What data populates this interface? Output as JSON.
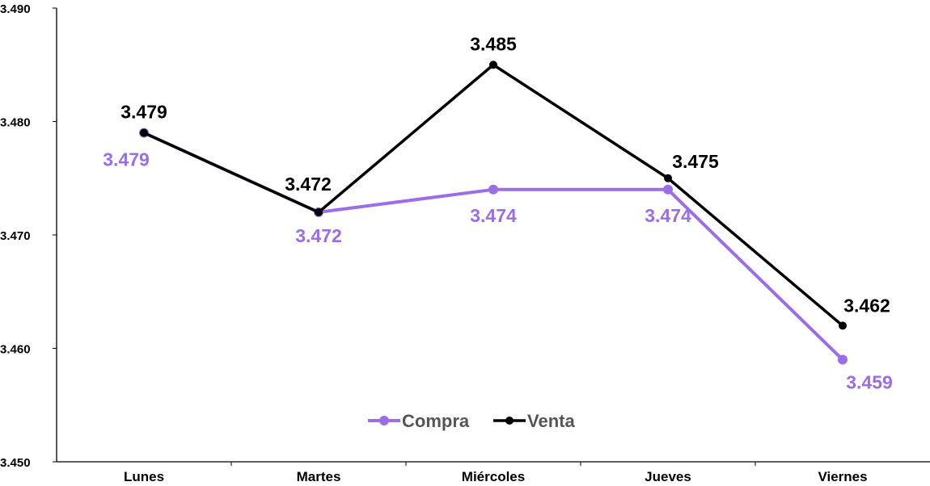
{
  "chart_data": {
    "type": "line",
    "categories": [
      "Lunes",
      "Martes",
      "Miércoles",
      "Jueves",
      "Viernes"
    ],
    "ylim": [
      3.45,
      3.49
    ],
    "yticks": [
      3.45,
      3.46,
      3.47,
      3.48,
      3.49
    ],
    "ytick_labels": [
      "3.450",
      "3.460",
      "3.470",
      "3.480",
      "3.490"
    ],
    "grid": false,
    "legend_placement": "bottom-center",
    "series": [
      {
        "name": "Compra",
        "color": "#9b6ee8",
        "values": [
          3.479,
          3.472,
          3.474,
          3.474,
          3.459
        ],
        "labels": [
          "3.479",
          "3.472",
          "3.474",
          "3.474",
          "3.459"
        ]
      },
      {
        "name": "Venta",
        "color": "#000000",
        "values": [
          3.479,
          3.472,
          3.485,
          3.475,
          3.462
        ],
        "labels": [
          "3.479",
          "3.472",
          "3.485",
          "3.475",
          "3.462"
        ]
      }
    ]
  }
}
